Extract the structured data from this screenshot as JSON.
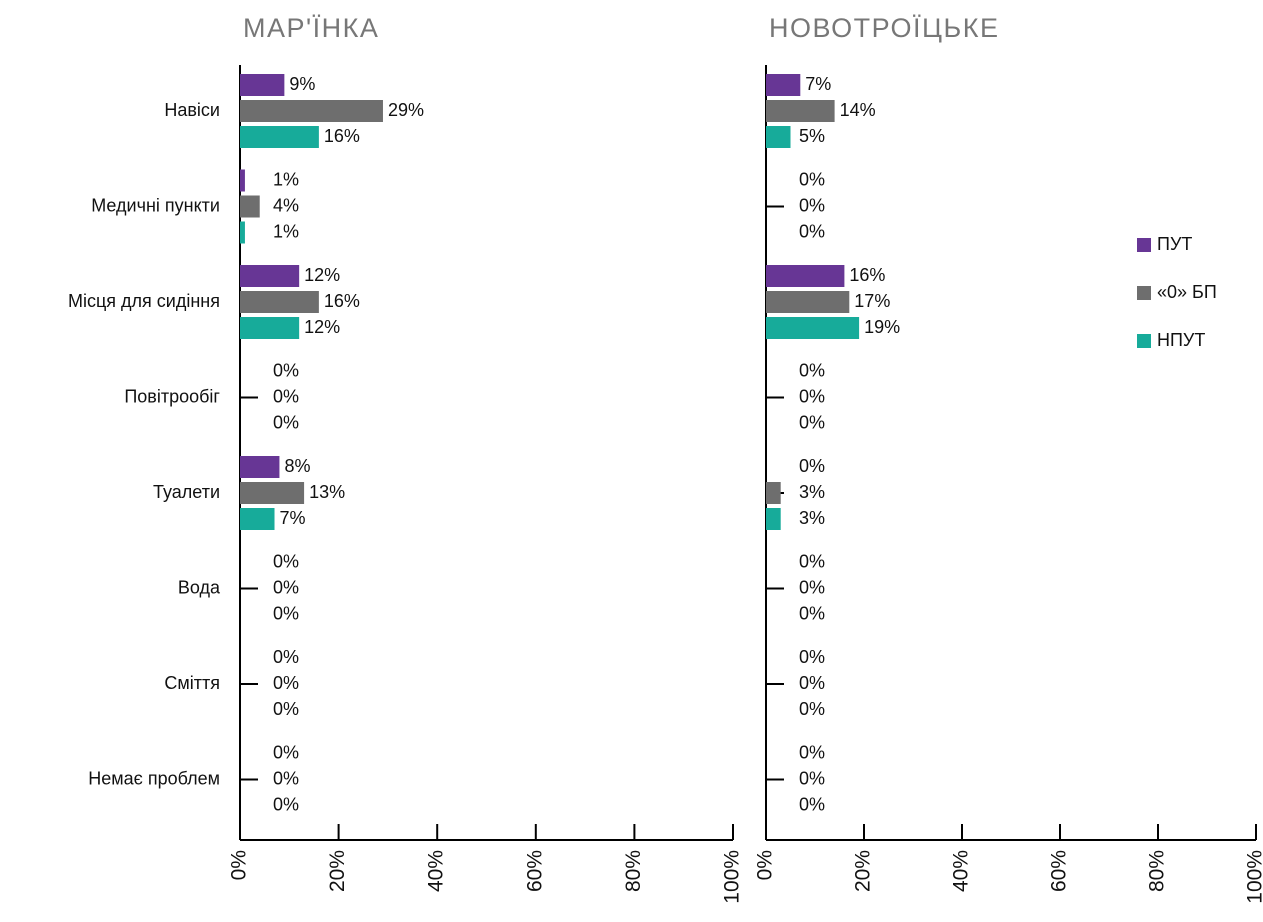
{
  "chart_data": [
    {
      "type": "barh",
      "title": "МАР'ЇНКА",
      "categories": [
        "Навіси",
        "Медичні пункти",
        "Місця для сидіння",
        "Повітрообіг",
        "Туалети",
        "Вода",
        "Сміття",
        "Немає проблем"
      ],
      "series": [
        {
          "color": "#673695",
          "values": [
            9,
            1,
            12,
            0,
            8,
            0,
            0,
            0
          ],
          "value_labels": [
            "9%",
            "1%",
            "12%",
            "0%",
            "8%",
            "0%",
            "0%",
            "0%"
          ]
        },
        {
          "color": "#6e6e6e",
          "values": [
            29,
            4,
            16,
            0,
            13,
            0,
            0,
            0
          ],
          "value_labels": [
            "29%",
            "4%",
            "16%",
            "0%",
            "13%",
            "0%",
            "0%",
            "0%"
          ]
        },
        {
          "color": "#17ab9a",
          "values": [
            16,
            1,
            12,
            0,
            7,
            0,
            0,
            0
          ],
          "value_labels": [
            "16%",
            "1%",
            "12%",
            "0%",
            "7%",
            "0%",
            "0%",
            "0%"
          ]
        }
      ],
      "xlim": [
        0,
        100
      ],
      "xticks": [
        {
          "value": 0,
          "label": "0%"
        },
        {
          "value": 20,
          "label": "20%"
        },
        {
          "value": 40,
          "label": "40%"
        },
        {
          "value": 60,
          "label": "60%"
        },
        {
          "value": 80,
          "label": "80%"
        },
        {
          "value": 100,
          "label": "100%"
        }
      ]
    },
    {
      "type": "barh",
      "title": "НОВОТРОЇЦЬКЕ",
      "series": [
        {
          "name": "ПУТ",
          "color": "#673695",
          "values": [
            7,
            0,
            16,
            0,
            0,
            0,
            0,
            0
          ],
          "value_labels": [
            "7%",
            "0%",
            "16%",
            "0%",
            "0%",
            "0%",
            "0%",
            "0%"
          ]
        },
        {
          "name": "«0» БП",
          "color": "#6e6e6e",
          "values": [
            14,
            0,
            17,
            0,
            3,
            0,
            0,
            0
          ],
          "value_labels": [
            "14%",
            "0%",
            "17%",
            "0%",
            "3%",
            "0%",
            "0%",
            "0%"
          ]
        },
        {
          "name": "НПУТ",
          "color": "#17ab9a",
          "values": [
            5,
            0,
            19,
            0,
            3,
            0,
            0,
            0
          ],
          "value_labels": [
            "5%",
            "0%",
            "19%",
            "0%",
            "3%",
            "0%",
            "0%",
            "0%"
          ]
        }
      ],
      "xlim": [
        0,
        100
      ],
      "xticks": [
        {
          "value": 0,
          "label": "0%"
        },
        {
          "value": 20,
          "label": "20%"
        },
        {
          "value": 40,
          "label": "40%"
        },
        {
          "value": 60,
          "label": "60%"
        },
        {
          "value": 80,
          "label": "80%"
        },
        {
          "value": 100,
          "label": "100%"
        }
      ],
      "legend": "right"
    }
  ]
}
